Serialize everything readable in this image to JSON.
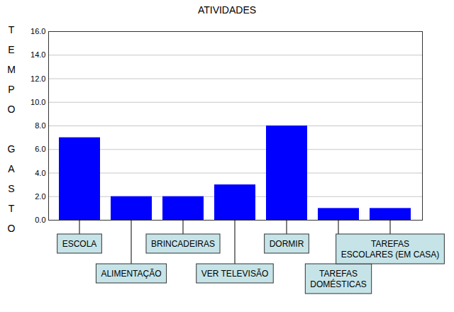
{
  "chart_data": {
    "type": "bar",
    "title": "ATIVIDADES",
    "y_label": "TEMPO GASTO",
    "categories": [
      "ESCOLA",
      "ALIMENTAÇÃO",
      "BRINCADEIRAS",
      "VER TELEVISÃO",
      "DORMIR",
      "TAREFAS DOMÉSTICAS",
      "TAREFAS ESCOLARES (EM CASA)"
    ],
    "values": [
      7,
      2,
      2,
      3,
      8,
      1,
      1
    ],
    "color": "#0000ff",
    "ylim": [
      0,
      16
    ],
    "yticks": [
      {
        "value": 0,
        "label": "0.0"
      },
      {
        "value": 2,
        "label": "2.0"
      },
      {
        "value": 4,
        "label": "4.0"
      },
      {
        "value": 6,
        "label": "6.0"
      },
      {
        "value": 8,
        "label": "8.0"
      },
      {
        "value": 10,
        "label": "10.0"
      },
      {
        "value": 12,
        "label": "12.0"
      },
      {
        "value": 14,
        "label": "14.0"
      },
      {
        "value": 16,
        "label": "16.0"
      }
    ],
    "grid": true
  }
}
